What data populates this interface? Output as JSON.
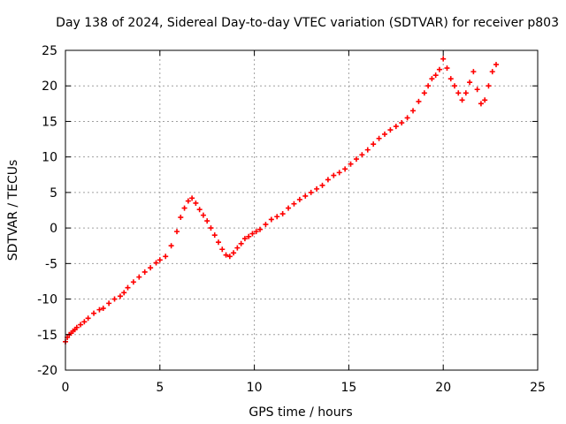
{
  "chart_data": {
    "type": "scatter",
    "title": "Day 138 of 2024, Sidereal Day-to-day VTEC variation (SDTVAR) for receiver p803",
    "xlabel": "GPS time / hours",
    "ylabel": "SDTVAR / TECUs",
    "xlim": [
      0,
      25
    ],
    "ylim": [
      -20,
      25
    ],
    "xticks": [
      0,
      5,
      10,
      15,
      20,
      25
    ],
    "yticks": [
      -20,
      -15,
      -10,
      -5,
      0,
      5,
      10,
      15,
      20,
      25
    ],
    "grid": true,
    "marker": "+",
    "color": "#ff0000",
    "series": [
      {
        "name": "SDTVAR",
        "x": [
          0.0,
          0.1,
          0.2,
          0.3,
          0.4,
          0.5,
          0.6,
          0.8,
          1.0,
          1.2,
          1.5,
          1.8,
          2.0,
          2.3,
          2.6,
          2.9,
          3.1,
          3.3,
          3.6,
          3.9,
          4.2,
          4.5,
          4.8,
          5.0,
          5.3,
          5.6,
          5.9,
          6.1,
          6.3,
          6.5,
          6.7,
          6.9,
          7.1,
          7.3,
          7.5,
          7.7,
          7.9,
          8.1,
          8.3,
          8.5,
          8.7,
          8.9,
          9.1,
          9.3,
          9.5,
          9.7,
          9.9,
          10.1,
          10.3,
          10.6,
          10.9,
          11.2,
          11.5,
          11.8,
          12.1,
          12.4,
          12.7,
          13.0,
          13.3,
          13.6,
          13.9,
          14.2,
          14.5,
          14.8,
          15.1,
          15.4,
          15.7,
          16.0,
          16.3,
          16.6,
          16.9,
          17.2,
          17.5,
          17.8,
          18.1,
          18.4,
          18.7,
          19.0,
          19.2,
          19.4,
          19.6,
          19.8,
          20.0,
          20.2,
          20.4,
          20.6,
          20.8,
          21.0,
          21.2,
          21.4,
          21.6,
          21.8,
          22.0,
          22.2,
          22.4,
          22.6,
          22.8
        ],
        "y": [
          -16.0,
          -15.4,
          -15.0,
          -14.8,
          -14.5,
          -14.3,
          -14.0,
          -13.6,
          -13.2,
          -12.7,
          -12.0,
          -11.5,
          -11.3,
          -10.6,
          -10.0,
          -9.6,
          -9.1,
          -8.4,
          -7.6,
          -6.9,
          -6.2,
          -5.6,
          -4.9,
          -4.5,
          -4.0,
          -2.5,
          -0.5,
          1.5,
          2.8,
          3.8,
          4.2,
          3.5,
          2.6,
          1.8,
          1.0,
          0.0,
          -1.0,
          -2.0,
          -3.0,
          -3.8,
          -4.0,
          -3.5,
          -2.8,
          -2.2,
          -1.5,
          -1.2,
          -0.8,
          -0.5,
          -0.2,
          0.5,
          1.2,
          1.6,
          2.0,
          2.8,
          3.4,
          4.0,
          4.5,
          5.0,
          5.5,
          6.0,
          6.8,
          7.4,
          7.8,
          8.3,
          9.0,
          9.7,
          10.3,
          11.0,
          11.8,
          12.6,
          13.2,
          13.8,
          14.3,
          14.8,
          15.5,
          16.5,
          17.8,
          19.0,
          20.0,
          21.0,
          21.5,
          22.3,
          23.8,
          22.5,
          21.0,
          20.0,
          19.0,
          18.0,
          19.0,
          20.5,
          22.0,
          19.5,
          17.5,
          18.0,
          20.0,
          22.0,
          23.0
        ]
      }
    ]
  }
}
